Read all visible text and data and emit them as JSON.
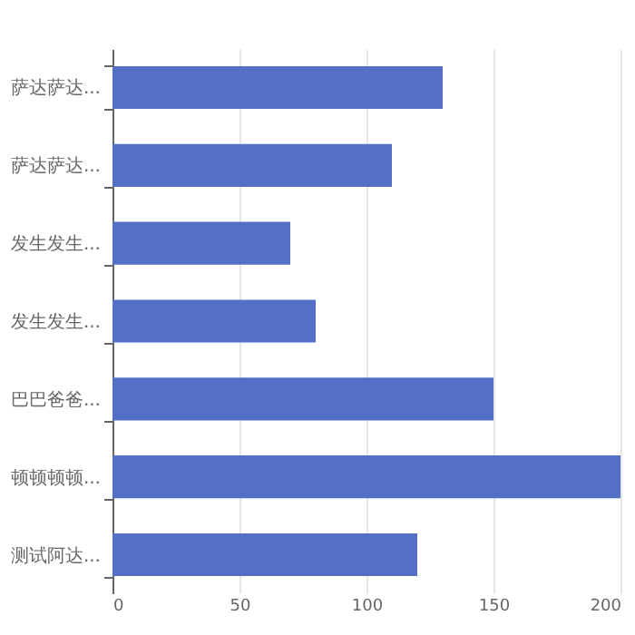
{
  "chart_data": {
    "type": "bar",
    "orientation": "horizontal",
    "categories": [
      "萨达萨达...",
      "萨达萨达...",
      "发生发生...",
      "发生发生...",
      "巴巴爸爸...",
      "顿顿顿顿...",
      "测试阿达..."
    ],
    "values": [
      130,
      110,
      70,
      80,
      150,
      200,
      120
    ],
    "color": "#5470c6",
    "xlim": [
      0,
      200
    ],
    "xticks": [
      0,
      50,
      100,
      150,
      200
    ],
    "grid": "x"
  }
}
